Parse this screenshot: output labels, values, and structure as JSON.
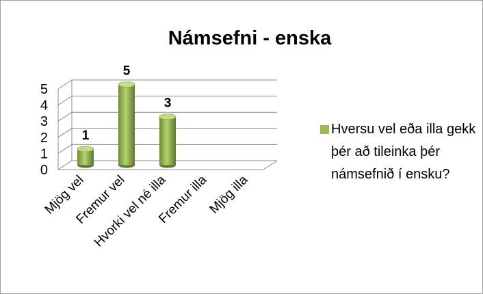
{
  "chart_data": {
    "type": "bar3d",
    "title": "Námsefni - enska",
    "categories": [
      "Mjög vel",
      "Fremur vel",
      "Hvorki vel né illa",
      "Fremur illa",
      "Mjög illa"
    ],
    "series": [
      {
        "name": "Hversu vel eða illa gekk þér að tileinka þér námsefnið í ensku?",
        "color": "#9bbb59",
        "values": [
          1,
          5,
          3,
          null,
          null
        ]
      }
    ],
    "ylim": [
      0,
      5
    ],
    "yticks": [
      0,
      1,
      2,
      3,
      4,
      5
    ],
    "grid": true,
    "legend": "right"
  }
}
